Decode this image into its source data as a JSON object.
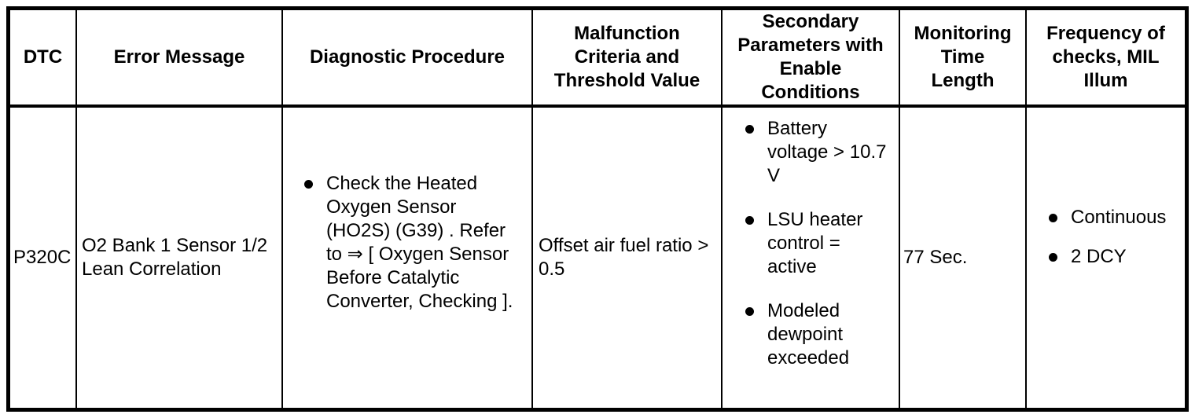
{
  "table": {
    "headers": [
      "DTC",
      "Error Message",
      "Diagnostic Procedure",
      [
        "Malfunction",
        "Criteria and",
        "Threshold Value"
      ],
      [
        "Secondary",
        "Parameters with",
        "Enable",
        "Conditions"
      ],
      [
        "Monitoring",
        "Time",
        "Length"
      ],
      [
        "Frequency of",
        "checks, MIL",
        "Illum"
      ]
    ],
    "row": {
      "dtc": "P320C",
      "error_message": [
        "O2 Bank 1 Sensor 1/2",
        "Lean Correlation"
      ],
      "diagnostic_procedure": {
        "items": [
          [
            "Check the Heated",
            "Oxygen Sensor",
            "(HO2S) (G39) . Refer",
            "to ⇒ [ Oxygen Sensor",
            "Before Catalytic",
            "Converter, Checking ]."
          ]
        ]
      },
      "malfunction_criteria": [
        "Offset air fuel ratio >",
        "0.5"
      ],
      "secondary_parameters": {
        "items": [
          [
            "Battery",
            "voltage > 10.7",
            "V"
          ],
          [
            "LSU heater",
            "control =",
            "active"
          ],
          [
            "Modeled",
            "dewpoint",
            "exceeded"
          ]
        ]
      },
      "monitoring_time_length": "77 Sec.",
      "frequency_of_checks": {
        "items": [
          [
            "Continuous"
          ],
          [
            "2 DCY"
          ]
        ]
      }
    },
    "colors": {
      "border": "#000000",
      "background": "#ffffff",
      "text": "#000000"
    }
  }
}
